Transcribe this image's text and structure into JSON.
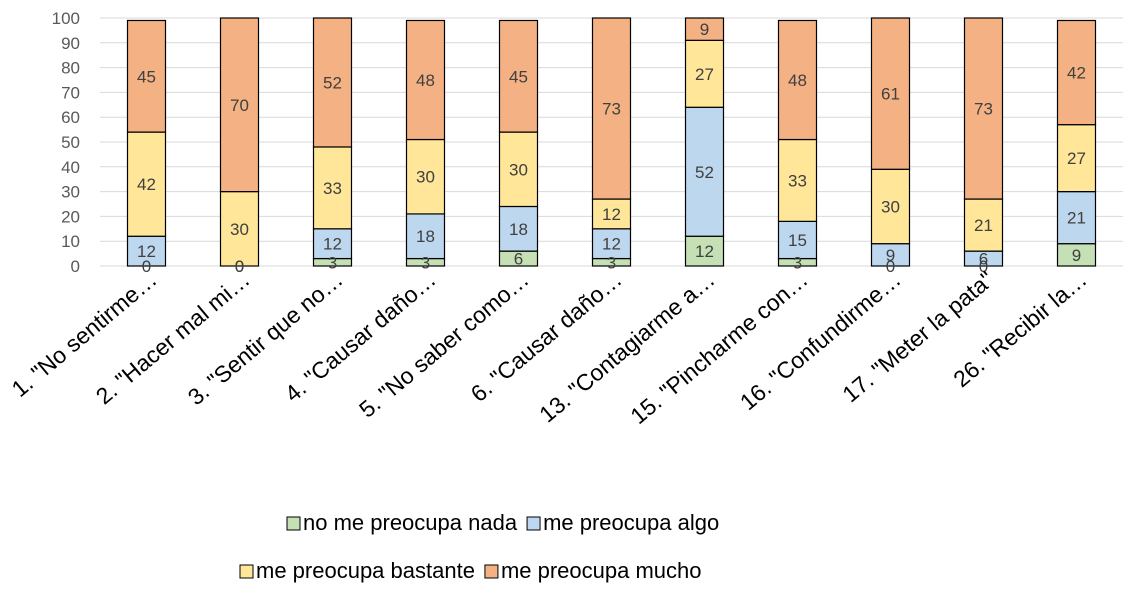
{
  "chart_data": {
    "type": "bar",
    "stacked": true,
    "categories": [
      "1. \"No sentirme…",
      "2.  \"Hacer mal mi…",
      "3.  \"Sentir que no…",
      "4.  \"Causar daño…",
      "5. \"No saber como…",
      "6. \"Causar daño…",
      "13.  \"Contagiarme a…",
      "15. \"Pincharme con…",
      "16. \"Confundirme…",
      "17.  \"Meter la pata\"",
      "26.  \"Recibir la…"
    ],
    "series": [
      {
        "name": "no me preocupa nada",
        "color": "#c5e0b4",
        "values": [
          0,
          0,
          3,
          3,
          6,
          3,
          12,
          3,
          0,
          0,
          9
        ]
      },
      {
        "name": "me preocupa algo",
        "color": "#bdd7ee",
        "values": [
          12,
          0,
          12,
          18,
          18,
          12,
          52,
          15,
          9,
          6,
          21
        ]
      },
      {
        "name": "me preocupa bastante",
        "color": "#ffe699",
        "values": [
          42,
          30,
          33,
          30,
          30,
          12,
          27,
          33,
          30,
          21,
          27
        ]
      },
      {
        "name": "me preocupa mucho",
        "color": "#f4b183",
        "values": [
          45,
          70,
          52,
          48,
          45,
          73,
          9,
          48,
          61,
          73,
          42
        ]
      }
    ],
    "ylim": [
      0,
      100
    ],
    "yticks": [
      0,
      10,
      20,
      30,
      40,
      50,
      60,
      70,
      80,
      90,
      100
    ],
    "grid": true,
    "legend_position": "bottom"
  }
}
